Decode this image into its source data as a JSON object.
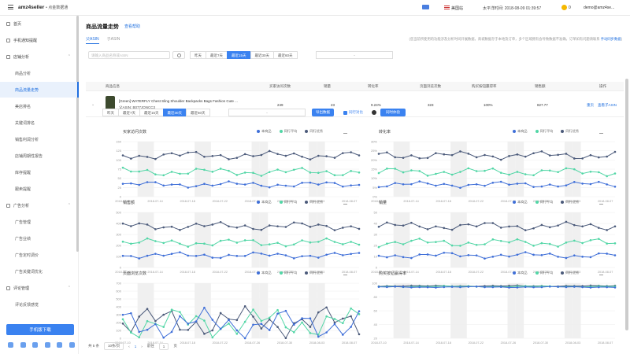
{
  "topbar": {
    "logo": "amz4seller",
    "logo_sub": "• 点金数据通",
    "site": "美国站",
    "time": "太平洋时间: 2018-08-09 01:39:57",
    "coins": "0",
    "user": "demo@amz4se..."
  },
  "sidebar": {
    "items": [
      {
        "label": "首页",
        "type": "main"
      },
      {
        "label": "手机通知提醒",
        "type": "main"
      },
      {
        "label": "店铺分析",
        "type": "main",
        "caret": "⌃"
      },
      {
        "label": "商品分析",
        "type": "sub"
      },
      {
        "label": "商品流量走势",
        "type": "sub",
        "active": true
      },
      {
        "label": "美店排名",
        "type": "sub"
      },
      {
        "label": "关键词排名",
        "type": "sub"
      },
      {
        "label": "销售利润分析",
        "type": "sub"
      },
      {
        "label": "店铺周期性报告",
        "type": "sub"
      },
      {
        "label": "库存提醒",
        "type": "sub"
      },
      {
        "label": "跟卖提醒",
        "type": "sub"
      },
      {
        "label": "广告分析",
        "type": "main",
        "caret": "⌃"
      },
      {
        "label": "广告管理",
        "type": "sub"
      },
      {
        "label": "广告业绩",
        "type": "sub"
      },
      {
        "label": "广告定时调价",
        "type": "sub"
      },
      {
        "label": "广告关键词优化",
        "type": "sub"
      },
      {
        "label": "评论管理",
        "type": "main",
        "caret": "⌃"
      },
      {
        "label": "评论反馈感觉",
        "type": "sub"
      }
    ],
    "download_label": "手机版下载"
  },
  "page": {
    "title": "商品流量走势",
    "help": "查看帮助",
    "tabs": [
      "父ASIN",
      "子ASIN"
    ],
    "notice": "(您当前所使用的功能涉及分析时间开展数据，商城数据存于本地及订单，多个区域拥有会导致数据不准确，订单如有问题请联系 ",
    "notice_link": "手动同步数据",
    "search_placeholder": "请输入商品名称或ASIN",
    "ranges": [
      "昨天",
      "最近7天",
      "最近15天",
      "最近30天",
      "最近60天"
    ],
    "date_sep": "-"
  },
  "table": {
    "headers": [
      "商品信息",
      "买家访问次数",
      "销量",
      "转化率",
      "页面浏览次数",
      "购买按钮赢得率",
      "销售额",
      "操作"
    ],
    "row": {
      "title": "[Green] WATERFLY Chest Sling Shoulder Backpacks Bags Fashion Cute ...",
      "asin": "父ASIN: B077JQNCC3",
      "visits": "249",
      "sales": "23",
      "conv": "9.24%",
      "views": "323",
      "buybox": "100%",
      "amount": "827.77",
      "act1": "重页",
      "act2": "查看子ASIN"
    }
  },
  "sub": {
    "ranges": [
      "昨天",
      "最近7天",
      "最近15天",
      "最近30天",
      "最近60天"
    ],
    "export": "导出数据",
    "compare": "同行对比",
    "trial": "同时体验"
  },
  "legend": [
    "本商品",
    "同行平均",
    "同行优秀"
  ],
  "colors": {
    "self": "#3f6fd8",
    "avg": "#52d6a6",
    "best": "#4b5a7a",
    "accent": "#3a82f0"
  },
  "charts": [
    {
      "title": "买家访问次数",
      "yticks": [
        "150",
        "125",
        "100",
        "75",
        "50",
        "25",
        "0"
      ]
    },
    {
      "title": "转化率",
      "yticks": [
        "30%",
        "25%",
        "20%",
        "15%",
        "10%",
        "5%",
        "0%"
      ]
    },
    {
      "title": "销售额",
      "yticks": [
        "500",
        "400",
        "300",
        "200",
        "100",
        "0"
      ]
    },
    {
      "title": "销量",
      "yticks": [
        "50",
        "40",
        "30",
        "20",
        "10",
        "0"
      ]
    },
    {
      "title": "页面浏览次数",
      "yticks": [
        "700",
        "600",
        "500",
        "400",
        "300",
        "200",
        "100",
        "0"
      ]
    },
    {
      "title": "购买按钮赢得率",
      "yticks": [
        "100",
        "80",
        "60",
        "40",
        "20"
      ]
    }
  ],
  "xticks": [
    "2018-07-10",
    "2018-07-14",
    "2018-07-18",
    "2018-07-22",
    "2018-07-26",
    "2018-07-30",
    "2018-08-03",
    "2018-08-07"
  ],
  "pager": {
    "total": "共 5 条",
    "size": "10条/页",
    "page": "1",
    "goto": "前往",
    "goto_val": "1",
    "unit": "页"
  }
}
